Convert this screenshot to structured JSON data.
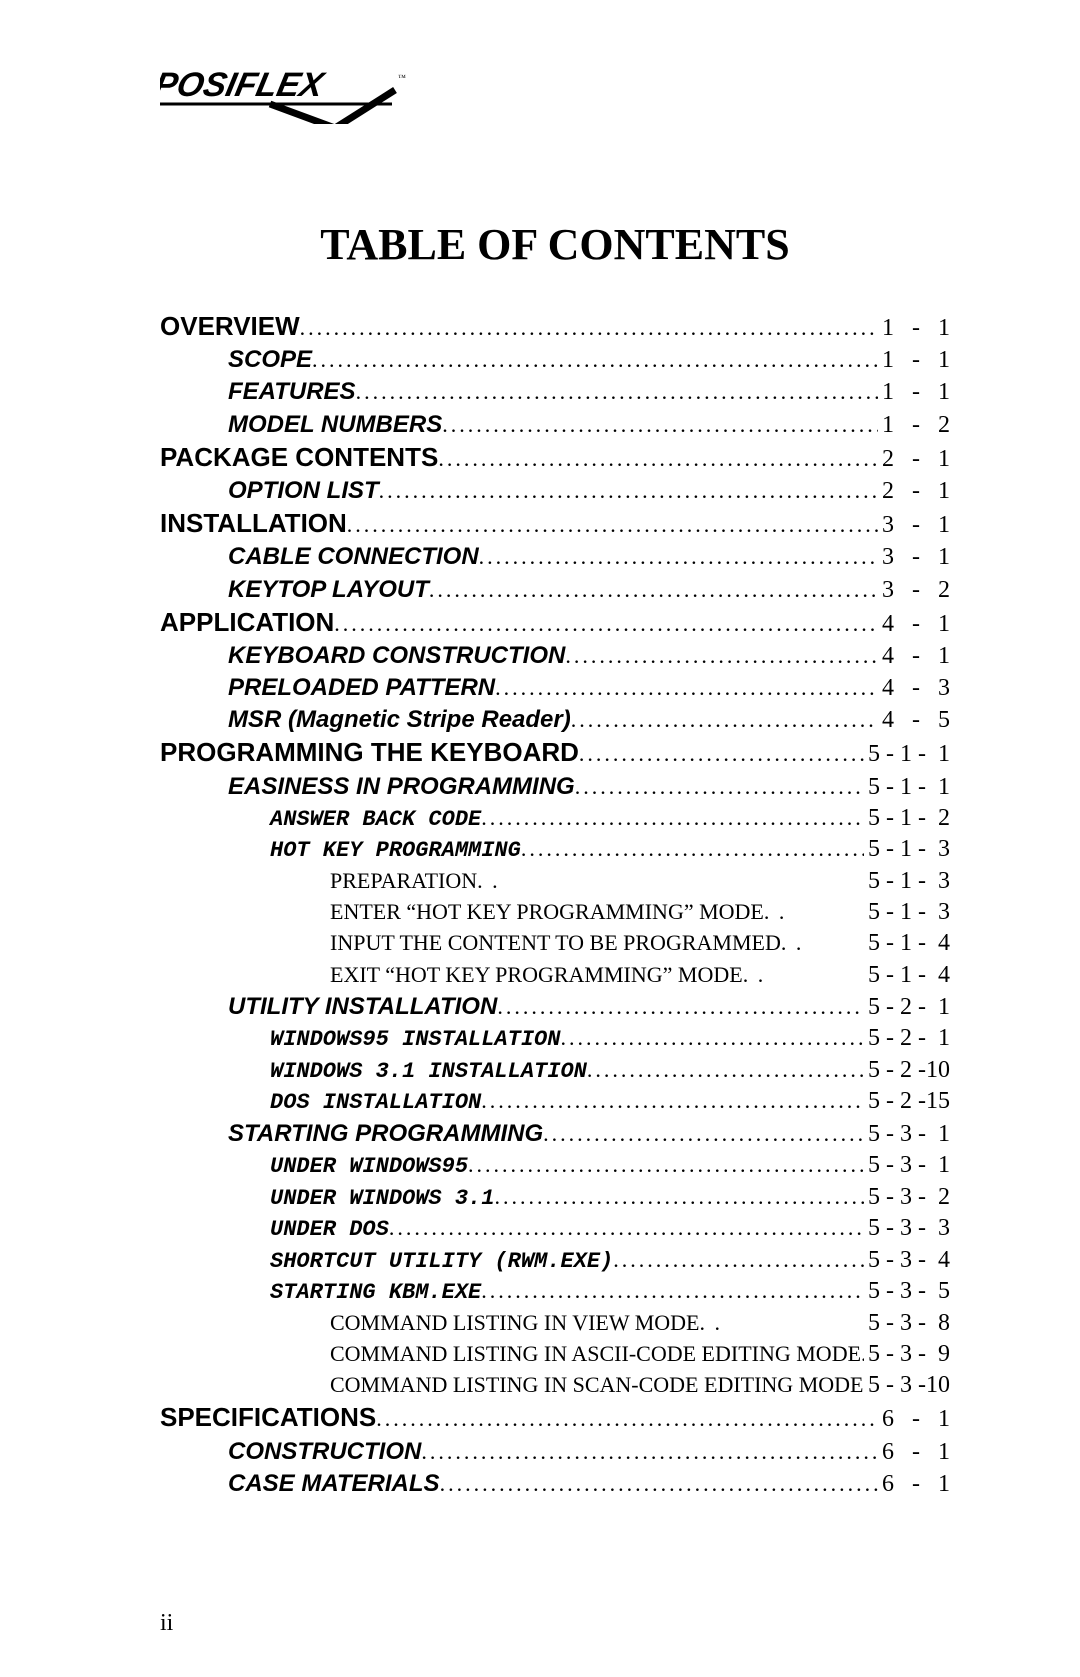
{
  "logo_text": "POSIFLEX",
  "title": "TABLE OF CONTENTS",
  "entries": [
    {
      "level": 0,
      "label": "OVERVIEW",
      "page": "1   -   1"
    },
    {
      "level": 1,
      "label": "SCOPE",
      "page": "1   -   1"
    },
    {
      "level": 1,
      "label": "FEATURES",
      "page": "1   -   1"
    },
    {
      "level": 1,
      "label": "MODEL NUMBERS",
      "page": "1   -   2"
    },
    {
      "level": 0,
      "label": "PACKAGE CONTENTS",
      "page": "2   -   1"
    },
    {
      "level": 1,
      "label": "OPTION LIST",
      "page": "2   -   1"
    },
    {
      "level": 0,
      "label": "INSTALLATION",
      "page": "3   -   1"
    },
    {
      "level": 1,
      "label": "CABLE CONNECTION",
      "page": "3   -   1"
    },
    {
      "level": 1,
      "label": "KEYTOP LAYOUT",
      "page": "3   -   2"
    },
    {
      "level": 0,
      "label": "APPLICATION",
      "page": "4   -   1"
    },
    {
      "level": 1,
      "label": "KEYBOARD CONSTRUCTION",
      "page": "4   -   1"
    },
    {
      "level": 1,
      "label": "PRELOADED PATTERN",
      "page": "4   -   3"
    },
    {
      "level": 1,
      "label": "MSR (Magnetic Stripe Reader)",
      "page": "4   -   5"
    },
    {
      "level": 0,
      "label": "PROGRAMMING THE KEYBOARD",
      "page": "5 - 1 -  1"
    },
    {
      "level": 1,
      "label": "EASINESS IN PROGRAMMING",
      "page": "5 - 1 -  1"
    },
    {
      "level": 2,
      "label": "ANSWER BACK CODE",
      "page": "5 - 1 -  2"
    },
    {
      "level": 2,
      "label": "HOT KEY PROGRAMMING",
      "page": "5 - 1 -  3"
    },
    {
      "level": 3,
      "label": "PREPARATION",
      "page": "5 - 1 -  3"
    },
    {
      "level": 3,
      "label": "ENTER “HOT KEY PROGRAMMING” MODE",
      "page": "5 - 1 -  3"
    },
    {
      "level": 3,
      "label": "INPUT THE CONTENT TO BE PROGRAMMED",
      "page": "5 - 1 -  4"
    },
    {
      "level": 3,
      "label": "EXIT “HOT KEY PROGRAMMING” MODE",
      "page": "5 - 1 -  4"
    },
    {
      "level": 1,
      "label": "UTILITY INSTALLATION",
      "page": "5 - 2 -  1"
    },
    {
      "level": 2,
      "label": "WINDOWS95 INSTALLATION",
      "page": "5 - 2 -  1"
    },
    {
      "level": 2,
      "label": "WINDOWS 3.1 INSTALLATION",
      "page": "5 - 2 -10"
    },
    {
      "level": 2,
      "label": "DOS INSTALLATION",
      "page": "5 - 2 -15"
    },
    {
      "level": 1,
      "label": "STARTING PROGRAMMING",
      "page": "5 - 3 -  1"
    },
    {
      "level": 2,
      "label": "UNDER WINDOWS95",
      "page": "5 - 3 -  1"
    },
    {
      "level": 2,
      "label": "UNDER WINDOWS 3.1",
      "page": "5 - 3 -  2"
    },
    {
      "level": 2,
      "label": "UNDER DOS",
      "page": "5 - 3 -  3"
    },
    {
      "level": 2,
      "label": "SHORTCUT UTILITY (RWM.EXE)",
      "page": "5 - 3 -  4"
    },
    {
      "level": 2,
      "label": "STARTING KBM.EXE",
      "page": "5 - 3 -  5"
    },
    {
      "level": 3,
      "label": "COMMAND LISTING IN VIEW MODE",
      "page": "5 - 3 -  8"
    },
    {
      "level": 3,
      "label": "COMMAND LISTING IN ASCII-CODE EDITING MODE",
      "page": "5 - 3 -  9"
    },
    {
      "level": 3,
      "label": "COMMAND LISTING IN SCAN-CODE EDITING MODE",
      "page": "5 - 3 -10"
    },
    {
      "level": 0,
      "label": "SPECIFICATIONS",
      "page": "6   -   1"
    },
    {
      "level": 1,
      "label": "CONSTRUCTION",
      "page": "6   -   1"
    },
    {
      "level": 1,
      "label": "CASE MATERIALS",
      "page": "6   -   1"
    }
  ],
  "page_number": "ii"
}
